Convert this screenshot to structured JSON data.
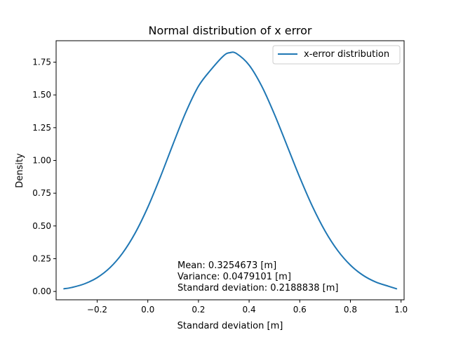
{
  "chart_data": {
    "type": "line",
    "title": "Normal distribution of x error",
    "xlabel": "Standard deviation [m]",
    "ylabel": "Density",
    "xlim": [
      -0.362,
      1.012
    ],
    "ylim": [
      -0.0636,
      1.9136
    ],
    "xticks": [
      -0.2,
      0.0,
      0.2,
      0.4,
      0.6,
      0.8,
      1.0
    ],
    "xtick_labels": [
      "−0.2",
      "0.0",
      "0.2",
      "0.4",
      "0.6",
      "0.8",
      "1.0"
    ],
    "yticks": [
      0.0,
      0.25,
      0.5,
      0.75,
      1.0,
      1.25,
      1.5,
      1.75
    ],
    "ytick_labels": [
      "0.00",
      "0.25",
      "0.50",
      "0.75",
      "1.00",
      "1.25",
      "1.50",
      "1.75"
    ],
    "grid": false,
    "legend_position": "top-right",
    "series": [
      {
        "name": "x-error distribution",
        "color": "#1f77b4",
        "x": [
          -0.331,
          -0.3,
          -0.25,
          -0.2,
          -0.15,
          -0.1,
          -0.05,
          0.0,
          0.05,
          0.1,
          0.15,
          0.2,
          0.25,
          0.3,
          0.325,
          0.35,
          0.4,
          0.45,
          0.5,
          0.55,
          0.6,
          0.65,
          0.7,
          0.75,
          0.8,
          0.85,
          0.9,
          0.95,
          0.982
        ],
        "y": [
          0.0203,
          0.0305,
          0.0583,
          0.1053,
          0.1804,
          0.2918,
          0.4454,
          0.6426,
          0.8756,
          1.1262,
          1.3671,
          1.5664,
          1.6937,
          1.7999,
          1.8227,
          1.8161,
          1.7276,
          1.5664,
          1.3524,
          1.1121,
          0.8708,
          0.6492,
          0.4609,
          0.3117,
          0.2009,
          0.1232,
          0.072,
          0.0401,
          0.0203
        ]
      }
    ],
    "annotations": [
      "Mean: 0.3254673 [m]",
      "Variance: 0.0479101 [m]",
      "Standard deviation: 0.2188838 [m]"
    ]
  }
}
